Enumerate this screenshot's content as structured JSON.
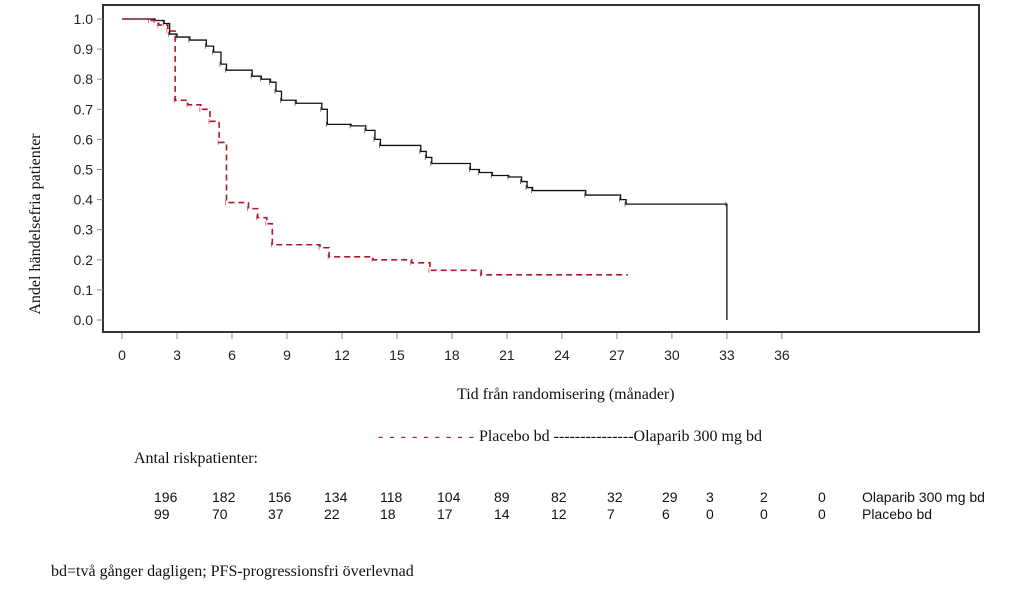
{
  "chart_data": {
    "type": "line",
    "subtype": "kaplan-meier step",
    "title": "",
    "xlabel": "Tid från randomisering (månader)",
    "ylabel": "Andel händelsefria patienter",
    "xlim": [
      -1,
      36
    ],
    "ylim": [
      0.0,
      1.0
    ],
    "x_ticks": [
      0,
      3,
      6,
      9,
      12,
      15,
      18,
      21,
      24,
      27,
      30,
      33,
      36
    ],
    "y_ticks": [
      "0.0",
      "0.1",
      "0.2",
      "0.3",
      "0.4",
      "0.5",
      "0.6",
      "0.7",
      "0.8",
      "0.9",
      "1.0"
    ],
    "grid": false,
    "legend_text": {
      "placebo_marker": "- - - - - - - - -",
      "placebo_label": "Placebo bd",
      "olaparib_marker": "---------------",
      "olaparib_label": "Olaparib 300 mg bd"
    },
    "series": [
      {
        "name": "Olaparib 300 mg bd",
        "style": "solid",
        "color": "#111111",
        "steps": [
          [
            0,
            1.0
          ],
          [
            1.8,
            0.995
          ],
          [
            2.3,
            0.985
          ],
          [
            2.6,
            0.95
          ],
          [
            3.0,
            0.94
          ],
          [
            3.7,
            0.93
          ],
          [
            4.6,
            0.91
          ],
          [
            5.0,
            0.89
          ],
          [
            5.4,
            0.85
          ],
          [
            5.7,
            0.83
          ],
          [
            7.1,
            0.81
          ],
          [
            7.6,
            0.8
          ],
          [
            8.1,
            0.79
          ],
          [
            8.4,
            0.76
          ],
          [
            8.7,
            0.73
          ],
          [
            9.5,
            0.72
          ],
          [
            10.9,
            0.7
          ],
          [
            11.2,
            0.65
          ],
          [
            12.5,
            0.645
          ],
          [
            13.3,
            0.63
          ],
          [
            13.8,
            0.6
          ],
          [
            14.1,
            0.58
          ],
          [
            16.3,
            0.56
          ],
          [
            16.6,
            0.54
          ],
          [
            16.9,
            0.52
          ],
          [
            19.0,
            0.5
          ],
          [
            19.5,
            0.49
          ],
          [
            20.2,
            0.48
          ],
          [
            21.1,
            0.475
          ],
          [
            21.8,
            0.46
          ],
          [
            22.1,
            0.44
          ],
          [
            22.4,
            0.43
          ],
          [
            25.3,
            0.415
          ],
          [
            27.2,
            0.4
          ],
          [
            27.5,
            0.385
          ],
          [
            33.0,
            0.385
          ],
          [
            33.0,
            0.0
          ]
        ],
        "at_risk": [
          196,
          182,
          156,
          134,
          118,
          104,
          89,
          82,
          32,
          29,
          3,
          2,
          0
        ]
      },
      {
        "name": "Placebo bd",
        "style": "dashed",
        "color": "#b0182a",
        "steps": [
          [
            0,
            1.0
          ],
          [
            1.5,
            0.995
          ],
          [
            2.0,
            0.98
          ],
          [
            2.5,
            0.96
          ],
          [
            2.9,
            0.73
          ],
          [
            3.6,
            0.715
          ],
          [
            4.3,
            0.7
          ],
          [
            4.8,
            0.66
          ],
          [
            5.3,
            0.59
          ],
          [
            5.7,
            0.39
          ],
          [
            6.9,
            0.37
          ],
          [
            7.4,
            0.34
          ],
          [
            7.9,
            0.32
          ],
          [
            8.2,
            0.25
          ],
          [
            10.8,
            0.24
          ],
          [
            11.3,
            0.21
          ],
          [
            13.7,
            0.2
          ],
          [
            15.8,
            0.19
          ],
          [
            16.8,
            0.165
          ],
          [
            19.6,
            0.15
          ],
          [
            27.6,
            0.15
          ]
        ],
        "at_risk": [
          99,
          70,
          37,
          22,
          18,
          17,
          14,
          12,
          7,
          6,
          0,
          0,
          0
        ]
      }
    ],
    "risk_table": {
      "title": "Antal riskpatienter:",
      "rows": [
        {
          "label": "Olaparib 300 mg bd",
          "values": [
            "196",
            "182",
            "156",
            "134",
            "118",
            "104",
            "89",
            "82",
            "32",
            "29",
            "3",
            "2",
            "0"
          ]
        },
        {
          "label": "Placebo bd",
          "values": [
            "99",
            "70",
            "37",
            "22",
            "18",
            "17",
            "14",
            "12",
            "7",
            "6",
            "0",
            "0",
            "0"
          ]
        }
      ]
    },
    "footnote": "bd=två gånger dagligen; PFS-progressionsfri överlevnad"
  }
}
